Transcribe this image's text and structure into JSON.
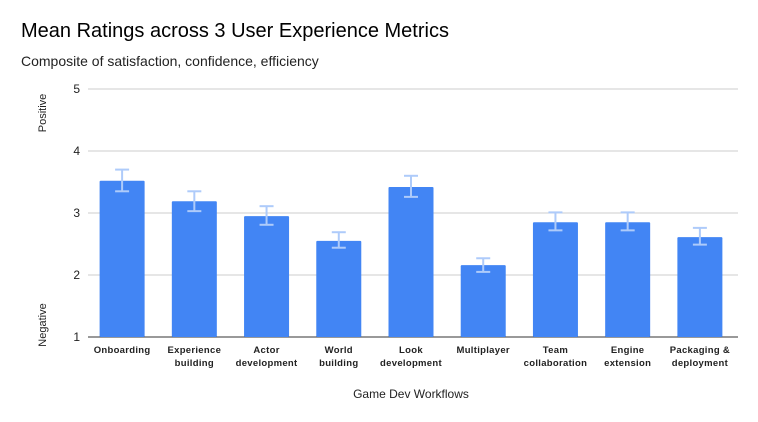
{
  "chart_data": {
    "type": "bar",
    "title": "Mean Ratings across 3 User Experience Metrics",
    "subtitle": "Composite of satisfaction, confidence, efficiency",
    "xlabel": "Game Dev Workflows",
    "ylabel_top": "Positive",
    "ylabel_bottom": "Negative",
    "ylim": [
      1,
      5
    ],
    "yticks": [
      1,
      2,
      3,
      4,
      5
    ],
    "grid": true,
    "legend": "none",
    "bar_color": "#4285f4",
    "error_bar_color": "#aecbfa",
    "categories": [
      [
        "Onboarding"
      ],
      [
        "Experience",
        "building"
      ],
      [
        "Actor",
        "development"
      ],
      [
        "World",
        "building"
      ],
      [
        "Look",
        "development"
      ],
      [
        "Multiplayer"
      ],
      [
        "Team",
        "collaboration"
      ],
      [
        "Engine",
        "extension"
      ],
      [
        "Packaging &",
        "deployment"
      ]
    ],
    "values": [
      3.52,
      3.19,
      2.95,
      2.55,
      3.42,
      2.16,
      2.85,
      2.85,
      2.61
    ],
    "error_low": [
      3.35,
      3.03,
      2.81,
      2.44,
      3.26,
      2.05,
      2.72,
      2.72,
      2.49
    ],
    "error_high": [
      3.7,
      3.35,
      3.11,
      2.69,
      3.6,
      2.27,
      3.01,
      3.01,
      2.76
    ]
  }
}
